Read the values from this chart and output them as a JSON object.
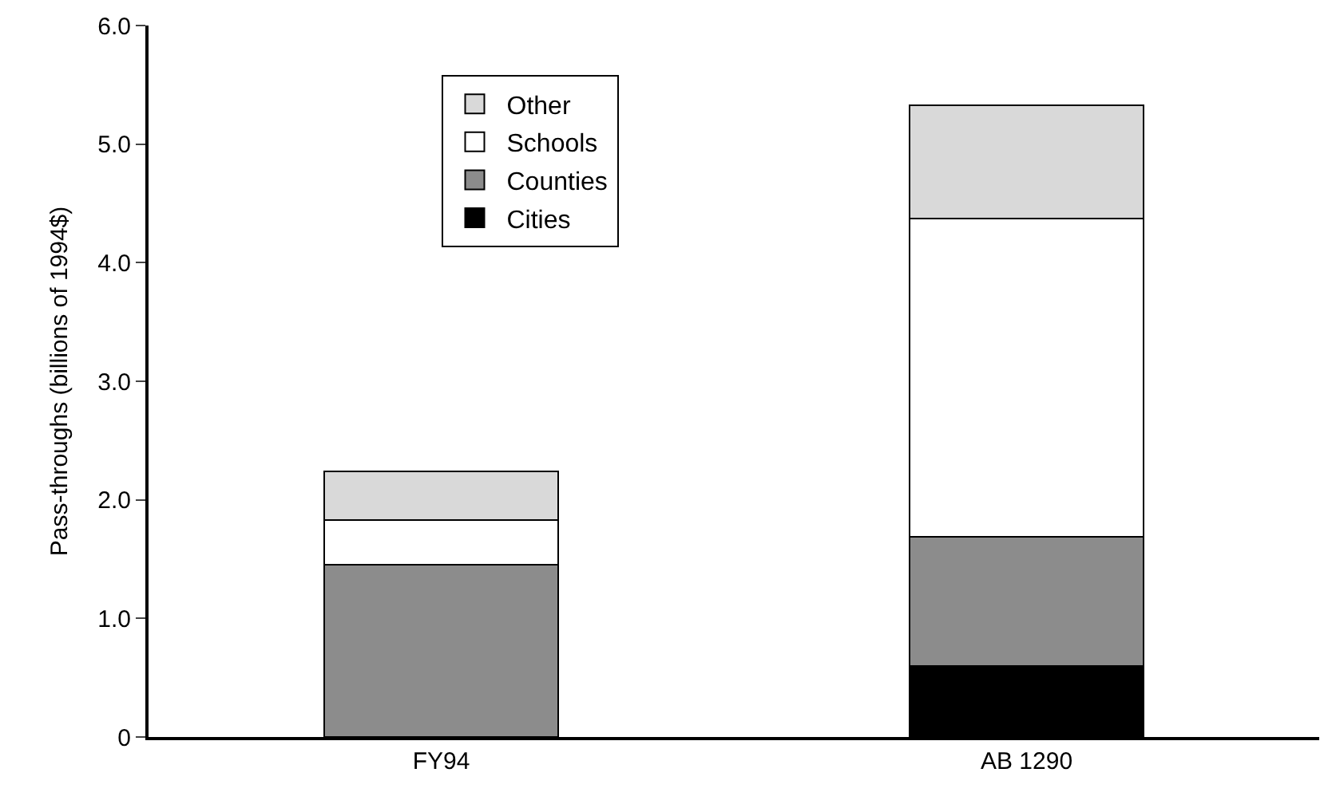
{
  "chart_data": {
    "type": "bar",
    "stacked": true,
    "ylabel": "Pass-throughs (billions of 1994$)",
    "categories": [
      "FY94",
      "AB 1290"
    ],
    "series": [
      {
        "name": "Cities",
        "color": "#000000",
        "values": [
          0,
          0.6
        ]
      },
      {
        "name": "Counties",
        "color": "#8c8c8c",
        "values": [
          1.45,
          1.09
        ]
      },
      {
        "name": "Schools",
        "color": "#ffffff",
        "values": [
          0.38,
          2.68
        ]
      },
      {
        "name": "Other",
        "color": "#d9d9d9",
        "values": [
          0.41,
          0.96
        ]
      }
    ],
    "ylim": [
      0,
      6
    ],
    "yticks": [
      0,
      {
        "value": 1,
        "label": "1.0"
      },
      {
        "value": 2,
        "label": "2.0"
      },
      {
        "value": 3,
        "label": "3.0"
      },
      {
        "value": 4,
        "label": "4.0"
      },
      {
        "value": 5,
        "label": "5.0"
      },
      {
        "value": 6,
        "label": "6.0"
      }
    ],
    "legend": "top left"
  }
}
